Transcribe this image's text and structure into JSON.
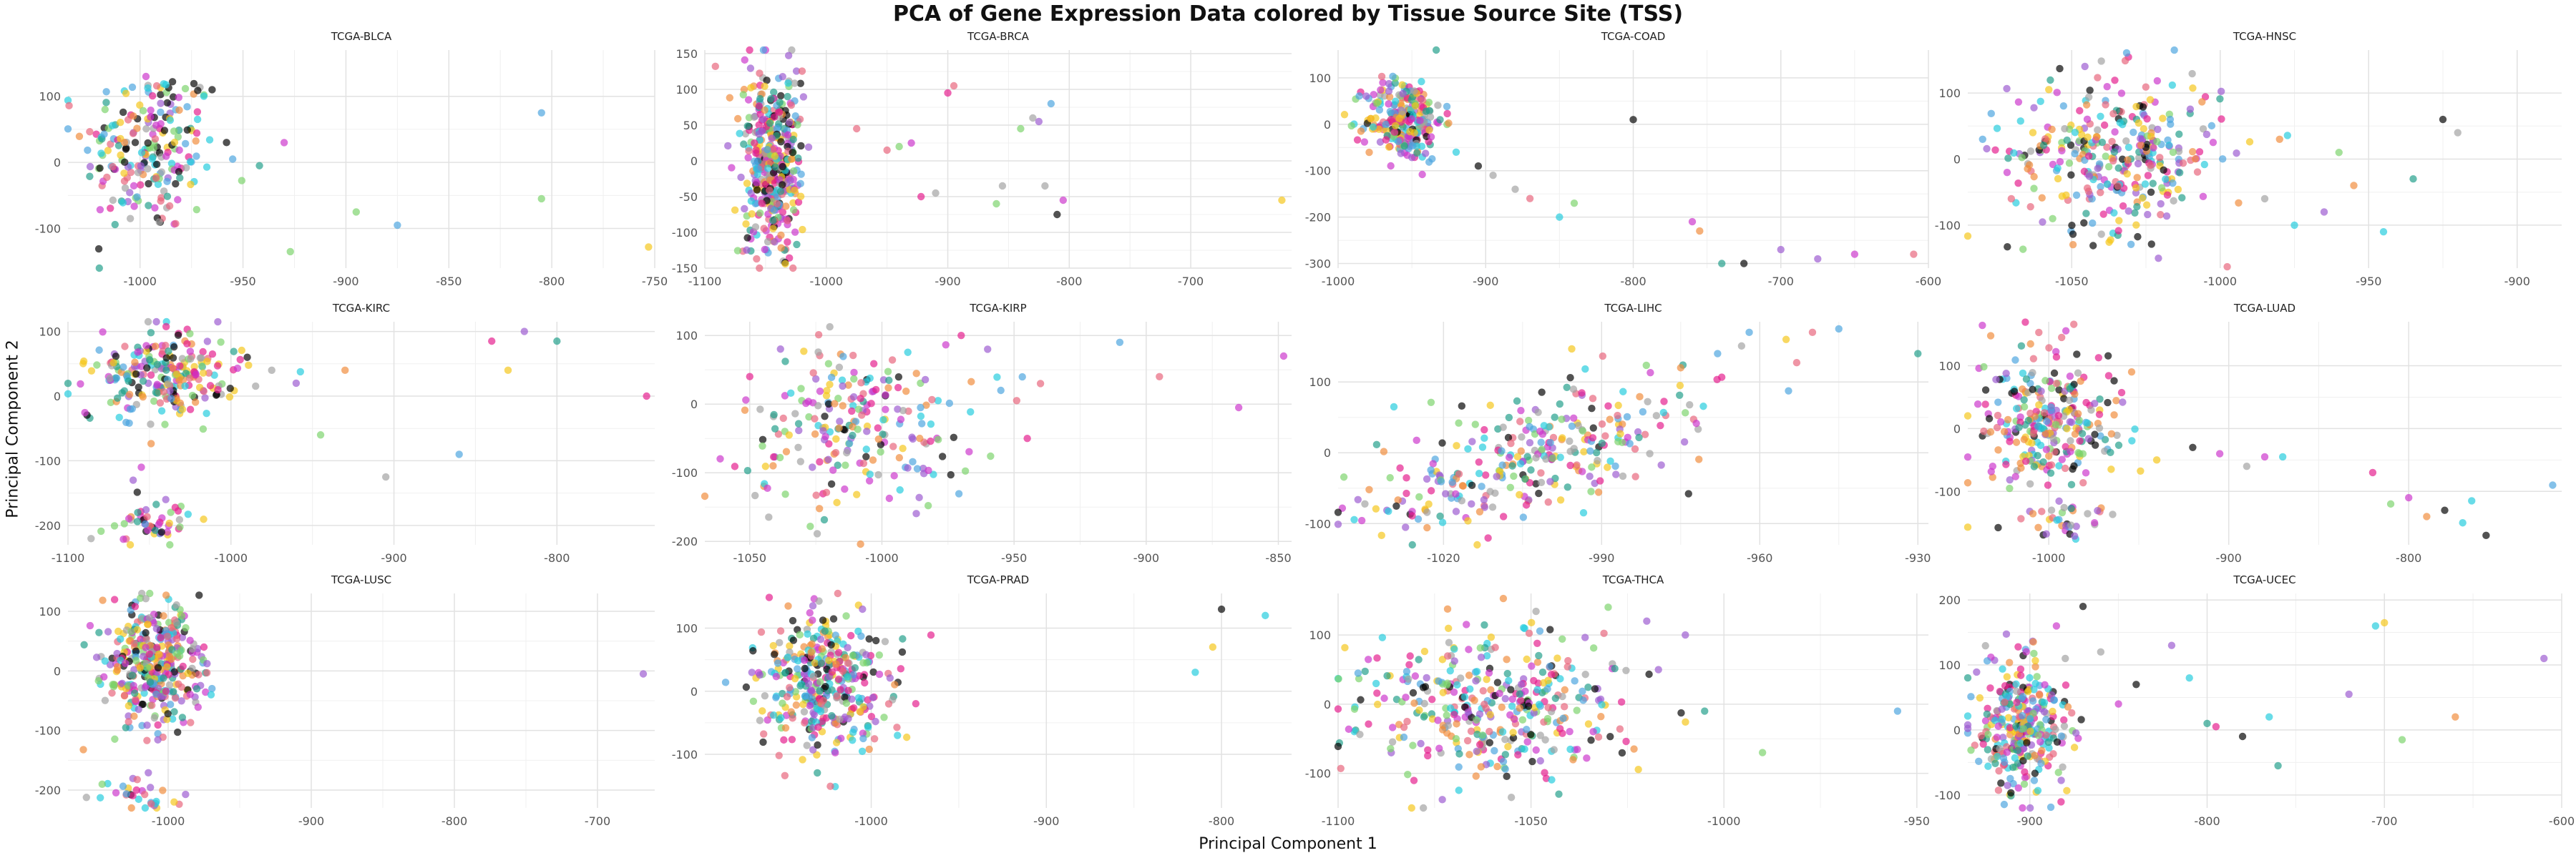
{
  "title": "PCA of Gene Expression Data colored by Tissue Source Site (TSS)",
  "xlabel": "Principal Component 1",
  "ylabel": "Principal Component 2",
  "palette": [
    "#000000",
    "#e41a8c",
    "#cc33cc",
    "#22ccdd",
    "#4aa3df",
    "#7ad36a",
    "#f5c518",
    "#f08a3a",
    "#e8637a",
    "#a0a0a0",
    "#9b59d0",
    "#1f9e89"
  ],
  "chart_data": [
    {
      "type": "scatter",
      "title": "TCGA-BLCA",
      "xlim": [
        -1035,
        -750
      ],
      "ylim": [
        -160,
        170
      ],
      "xticks": [
        -1000,
        -950,
        -900,
        -850,
        -800,
        -750
      ],
      "yticks": [
        -100,
        0,
        100
      ],
      "clusters": [
        {
          "cx": -995,
          "cy": 20,
          "sx": 16,
          "sy": 65,
          "n": 220
        }
      ],
      "extra": [
        [
          -965,
          110
        ],
        [
          -955,
          5
        ],
        [
          -942,
          -5
        ],
        [
          -930,
          30
        ],
        [
          -927,
          -135
        ],
        [
          -895,
          -75
        ],
        [
          -875,
          -95
        ],
        [
          -805,
          75
        ],
        [
          -805,
          -55
        ],
        [
          -753,
          -128
        ]
      ]
    },
    {
      "type": "scatter",
      "title": "TCGA-BRCA",
      "xlim": [
        -1100,
        -617
      ],
      "ylim": [
        -150,
        155
      ],
      "xticks": [
        -1100,
        -1000,
        -900,
        -800,
        -700
      ],
      "yticks": [
        -150,
        -100,
        -50,
        0,
        50,
        100,
        150
      ],
      "clusters": [
        {
          "cx": -1045,
          "cy": 0,
          "sx": 12,
          "sy": 60,
          "n": 420
        }
      ],
      "extra": [
        [
          -975,
          45
        ],
        [
          -950,
          15
        ],
        [
          -940,
          20
        ],
        [
          -930,
          25
        ],
        [
          -922,
          -50
        ],
        [
          -910,
          -45
        ],
        [
          -900,
          95
        ],
        [
          -895,
          105
        ],
        [
          -860,
          -60
        ],
        [
          -855,
          -35
        ],
        [
          -840,
          45
        ],
        [
          -830,
          60
        ],
        [
          -825,
          55
        ],
        [
          -820,
          -35
        ],
        [
          -815,
          80
        ],
        [
          -810,
          -75
        ],
        [
          -805,
          -55
        ],
        [
          -625,
          -55
        ]
      ]
    },
    {
      "type": "scatter",
      "title": "TCGA-COAD",
      "xlim": [
        -1000,
        -600
      ],
      "ylim": [
        -310,
        160
      ],
      "xticks": [
        -1000,
        -900,
        -800,
        -700,
        -600
      ],
      "yticks": [
        -300,
        -200,
        -100,
        0,
        100
      ],
      "clusters": [
        {
          "cx": -955,
          "cy": 10,
          "sx": 13,
          "sy": 45,
          "n": 260
        }
      ],
      "extra": [
        [
          -920,
          -60
        ],
        [
          -905,
          -90
        ],
        [
          -895,
          -110
        ],
        [
          -880,
          -140
        ],
        [
          -870,
          -160
        ],
        [
          -850,
          -200
        ],
        [
          -840,
          -170
        ],
        [
          -800,
          10
        ],
        [
          -760,
          -210
        ],
        [
          -755,
          -230
        ],
        [
          -740,
          -300
        ],
        [
          -725,
          -300
        ],
        [
          -700,
          -270
        ],
        [
          -675,
          -290
        ],
        [
          -650,
          -280
        ],
        [
          -610,
          -280
        ]
      ]
    },
    {
      "type": "scatter",
      "title": "TCGA-HNSC",
      "xlim": [
        -1085,
        -885
      ],
      "ylim": [
        -165,
        165
      ],
      "xticks": [
        -1050,
        -1000,
        -950,
        -900
      ],
      "yticks": [
        -100,
        0,
        100
      ],
      "clusters": [
        {
          "cx": -1035,
          "cy": 10,
          "sx": 18,
          "sy": 60,
          "n": 340
        }
      ],
      "extra": [
        [
          -985,
          -60
        ],
        [
          -980,
          30
        ],
        [
          -975,
          -100
        ],
        [
          -965,
          -80
        ],
        [
          -960,
          10
        ],
        [
          -955,
          -40
        ],
        [
          -945,
          -110
        ],
        [
          -935,
          -30
        ],
        [
          -925,
          60
        ],
        [
          -920,
          40
        ],
        [
          -1080,
          30
        ]
      ]
    },
    {
      "type": "scatter",
      "title": "TCGA-KIRC",
      "xlim": [
        -1100,
        -740
      ],
      "ylim": [
        -230,
        115
      ],
      "xticks": [
        -1100,
        -1000,
        -900,
        -800
      ],
      "yticks": [
        -200,
        -100,
        0,
        100
      ],
      "clusters": [
        {
          "cx": -1040,
          "cy": 30,
          "sx": 22,
          "sy": 35,
          "n": 240
        },
        {
          "cx": -1050,
          "cy": -200,
          "sx": 14,
          "sy": 18,
          "n": 50
        }
      ],
      "extra": [
        [
          -990,
          60
        ],
        [
          -975,
          40
        ],
        [
          -960,
          20
        ],
        [
          -945,
          -60
        ],
        [
          -930,
          40
        ],
        [
          -905,
          -125
        ],
        [
          -860,
          -90
        ],
        [
          -840,
          85
        ],
        [
          -830,
          40
        ],
        [
          -820,
          100
        ],
        [
          -800,
          85
        ],
        [
          -745,
          0
        ],
        [
          -1060,
          -130
        ],
        [
          -1055,
          -110
        ],
        [
          -1040,
          -160
        ]
      ]
    },
    {
      "type": "scatter",
      "title": "TCGA-KIRP",
      "xlim": [
        -1067,
        -845
      ],
      "ylim": [
        -205,
        120
      ],
      "xticks": [
        -1050,
        -1000,
        -950,
        -900,
        -850
      ],
      "yticks": [
        -200,
        -100,
        0,
        100
      ],
      "clusters": [
        {
          "cx": -1010,
          "cy": -30,
          "sx": 22,
          "sy": 60,
          "n": 230
        }
      ],
      "extra": [
        [
          -970,
          100
        ],
        [
          -960,
          80
        ],
        [
          -955,
          20
        ],
        [
          -945,
          -50
        ],
        [
          -940,
          30
        ],
        [
          -910,
          90
        ],
        [
          -895,
          40
        ],
        [
          -865,
          -5
        ],
        [
          -848,
          70
        ]
      ]
    },
    {
      "type": "scatter",
      "title": "TCGA-LIHC",
      "xlim": [
        -1040,
        -928
      ],
      "ylim": [
        -130,
        185
      ],
      "xticks": [
        -1020,
        -990,
        -960,
        -930
      ],
      "yticks": [
        -100,
        0,
        100
      ],
      "clusters": [
        {
          "cx": -1005,
          "cy": -10,
          "sx": 16,
          "sy": 55,
          "n": 300,
          "corr": 0.65
        }
      ],
      "extra": [
        [
          -975,
          120
        ],
        [
          -968,
          140
        ],
        [
          -962,
          170
        ],
        [
          -955,
          160
        ],
        [
          -950,
          170
        ],
        [
          -945,
          175
        ],
        [
          -930,
          140
        ]
      ]
    },
    {
      "type": "scatter",
      "title": "TCGA-LUAD",
      "xlim": [
        -1045,
        -715
      ],
      "ylim": [
        -185,
        170
      ],
      "xticks": [
        -1000,
        -900,
        -800
      ],
      "yticks": [
        -100,
        0,
        100
      ],
      "clusters": [
        {
          "cx": -1000,
          "cy": 10,
          "sx": 18,
          "sy": 65,
          "n": 290
        },
        {
          "cx": -995,
          "cy": -150,
          "sx": 18,
          "sy": 15,
          "n": 30
        }
      ],
      "extra": [
        [
          -940,
          -50
        ],
        [
          -920,
          -30
        ],
        [
          -905,
          -40
        ],
        [
          -890,
          -60
        ],
        [
          -880,
          -45
        ],
        [
          -870,
          -45
        ],
        [
          -820,
          -70
        ],
        [
          -810,
          -120
        ],
        [
          -800,
          -110
        ],
        [
          -790,
          -140
        ],
        [
          -780,
          -130
        ],
        [
          -770,
          -150
        ],
        [
          -765,
          -115
        ],
        [
          -757,
          -170
        ],
        [
          -720,
          -90
        ]
      ]
    },
    {
      "type": "scatter",
      "title": "TCGA-LUSC",
      "xlim": [
        -1070,
        -660
      ],
      "ylim": [
        -230,
        130
      ],
      "xticks": [
        -1000,
        -900,
        -800,
        -700
      ],
      "yticks": [
        -200,
        -100,
        0,
        100
      ],
      "clusters": [
        {
          "cx": -1010,
          "cy": 10,
          "sx": 16,
          "sy": 55,
          "n": 380
        },
        {
          "cx": -1020,
          "cy": -210,
          "sx": 20,
          "sy": 12,
          "n": 30
        }
      ],
      "extra": [
        [
          -980,
          -30
        ],
        [
          -975,
          40
        ],
        [
          -970,
          -40
        ],
        [
          -668,
          -5
        ]
      ]
    },
    {
      "type": "scatter",
      "title": "TCGA-PRAD",
      "xlim": [
        -1095,
        -760
      ],
      "ylim": [
        -185,
        155
      ],
      "xticks": [
        -1000,
        -900,
        -800
      ],
      "yticks": [
        -100,
        0,
        100
      ],
      "clusters": [
        {
          "cx": -1027,
          "cy": 10,
          "sx": 18,
          "sy": 55,
          "n": 380
        }
      ],
      "extra": [
        [
          -990,
          -20
        ],
        [
          -985,
          -70
        ],
        [
          -815,
          30
        ],
        [
          -805,
          70
        ],
        [
          -800,
          130
        ],
        [
          -775,
          120
        ]
      ]
    },
    {
      "type": "scatter",
      "title": "TCGA-THCA",
      "xlim": [
        -1100,
        -947
      ],
      "ylim": [
        -150,
        160
      ],
      "xticks": [
        -1100,
        -1050,
        -1000,
        -950
      ],
      "yticks": [
        -100,
        0,
        100
      ],
      "clusters": [
        {
          "cx": -1060,
          "cy": 0,
          "sx": 18,
          "sy": 55,
          "n": 380
        }
      ],
      "extra": [
        [
          -1030,
          140
        ],
        [
          -1020,
          120
        ],
        [
          -1010,
          100
        ],
        [
          -1005,
          -10
        ],
        [
          -990,
          -70
        ],
        [
          -955,
          -10
        ]
      ]
    },
    {
      "type": "scatter",
      "title": "TCGA-UCEC",
      "xlim": [
        -935,
        -600
      ],
      "ylim": [
        -120,
        210
      ],
      "xticks": [
        -900,
        -800,
        -700,
        -600
      ],
      "yticks": [
        -100,
        0,
        100,
        200
      ],
      "clusters": [
        {
          "cx": -905,
          "cy": 10,
          "sx": 13,
          "sy": 50,
          "n": 320
        }
      ],
      "extra": [
        [
          -885,
          160
        ],
        [
          -880,
          110
        ],
        [
          -870,
          190
        ],
        [
          -860,
          120
        ],
        [
          -850,
          40
        ],
        [
          -840,
          70
        ],
        [
          -820,
          130
        ],
        [
          -810,
          80
        ],
        [
          -800,
          10
        ],
        [
          -795,
          5
        ],
        [
          -780,
          -10
        ],
        [
          -765,
          20
        ],
        [
          -760,
          -55
        ],
        [
          -720,
          55
        ],
        [
          -705,
          160
        ],
        [
          -700,
          165
        ],
        [
          -690,
          -15
        ],
        [
          -660,
          20
        ],
        [
          -610,
          110
        ]
      ]
    }
  ]
}
